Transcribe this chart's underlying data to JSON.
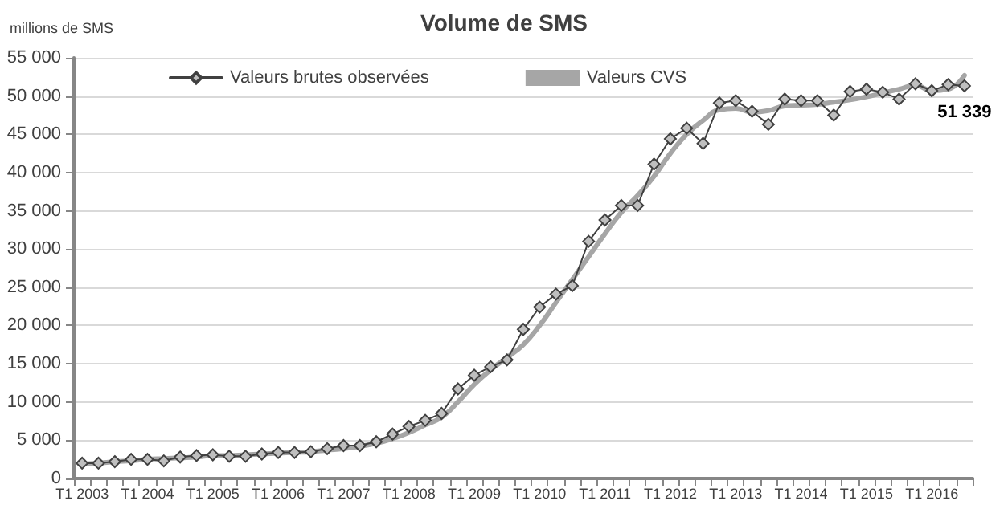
{
  "chart_data": {
    "type": "line",
    "title": "Volume de SMS",
    "ylabel": "millions de SMS",
    "categories": [
      "T1 2003",
      null,
      null,
      null,
      "T1 2004",
      null,
      null,
      null,
      "T1 2005",
      null,
      null,
      null,
      "T1 2006",
      null,
      null,
      null,
      "T1 2007",
      null,
      null,
      null,
      "T1 2008",
      null,
      null,
      null,
      "T1 2009",
      null,
      null,
      null,
      "T1 2010",
      null,
      null,
      null,
      "T1 2011",
      null,
      null,
      null,
      "T1 2012",
      null,
      null,
      null,
      "T1 2013",
      null,
      null,
      null,
      "T1 2014",
      null,
      null,
      null,
      "T1 2015",
      null,
      null,
      null,
      "T1 2016",
      null,
      null
    ],
    "series": [
      {
        "name": "Valeurs brutes observées",
        "color": "#404040",
        "marker": "diamond",
        "line_style": "solid",
        "values": [
          2000,
          2000,
          2200,
          2500,
          2500,
          2300,
          2800,
          3000,
          3100,
          2900,
          2900,
          3200,
          3400,
          3400,
          3500,
          3900,
          4300,
          4300,
          4800,
          5800,
          6800,
          7600,
          8500,
          11700,
          13500,
          14600,
          15500,
          19500,
          22400,
          24100,
          25200,
          31000,
          33800,
          35700,
          35700,
          41100,
          44400,
          45800,
          43800,
          49100,
          49400,
          48000,
          46300,
          49600,
          49400,
          49400,
          47500,
          50600,
          50900,
          50500,
          49600,
          51600,
          50700,
          51500,
          51339
        ],
        "value_labels": [
          null,
          null,
          null,
          null,
          null,
          null,
          null,
          null,
          null,
          null,
          null,
          null,
          null,
          null,
          null,
          null,
          null,
          null,
          null,
          null,
          null,
          null,
          null,
          null,
          null,
          null,
          null,
          null,
          null,
          null,
          null,
          null,
          null,
          null,
          null,
          null,
          null,
          null,
          null,
          null,
          null,
          null,
          null,
          null,
          null,
          null,
          null,
          null,
          null,
          null,
          null,
          null,
          null,
          null,
          "51 339"
        ]
      },
      {
        "name": "Valeurs CVS",
        "color": "#a6a6a6",
        "marker": "none",
        "line_style": "solid",
        "values": [
          1900,
          2000,
          2200,
          2300,
          2500,
          2600,
          2700,
          2800,
          3000,
          3000,
          3100,
          3200,
          3300,
          3400,
          3500,
          3700,
          3900,
          4200,
          4600,
          5200,
          6000,
          7000,
          8000,
          10000,
          12300,
          14200,
          15800,
          17500,
          20000,
          23000,
          26000,
          29000,
          32000,
          34800,
          37000,
          39500,
          42500,
          45000,
          46800,
          48200,
          48400,
          47900,
          48100,
          48700,
          48800,
          48900,
          49200,
          49500,
          49900,
          50400,
          50900,
          51400,
          50700,
          50900,
          52700
        ]
      }
    ],
    "ylim": [
      0,
      55000
    ],
    "yticks": [
      0,
      {
        "value": 5000,
        "label": "5 000"
      },
      {
        "value": 10000,
        "label": "10 000"
      },
      {
        "value": 15000,
        "label": "15 000"
      },
      {
        "value": 20000,
        "label": "20 000"
      },
      {
        "value": 25000,
        "label": "25 000"
      },
      {
        "value": 30000,
        "label": "30 000"
      },
      {
        "value": 35000,
        "label": "35 000"
      },
      {
        "value": 40000,
        "label": "40 000"
      },
      {
        "value": 45000,
        "label": "45 000"
      },
      {
        "value": 50000,
        "label": "50 000"
      },
      {
        "value": 55000,
        "label": "55 000"
      }
    ],
    "grid": "y",
    "legend": "top"
  }
}
